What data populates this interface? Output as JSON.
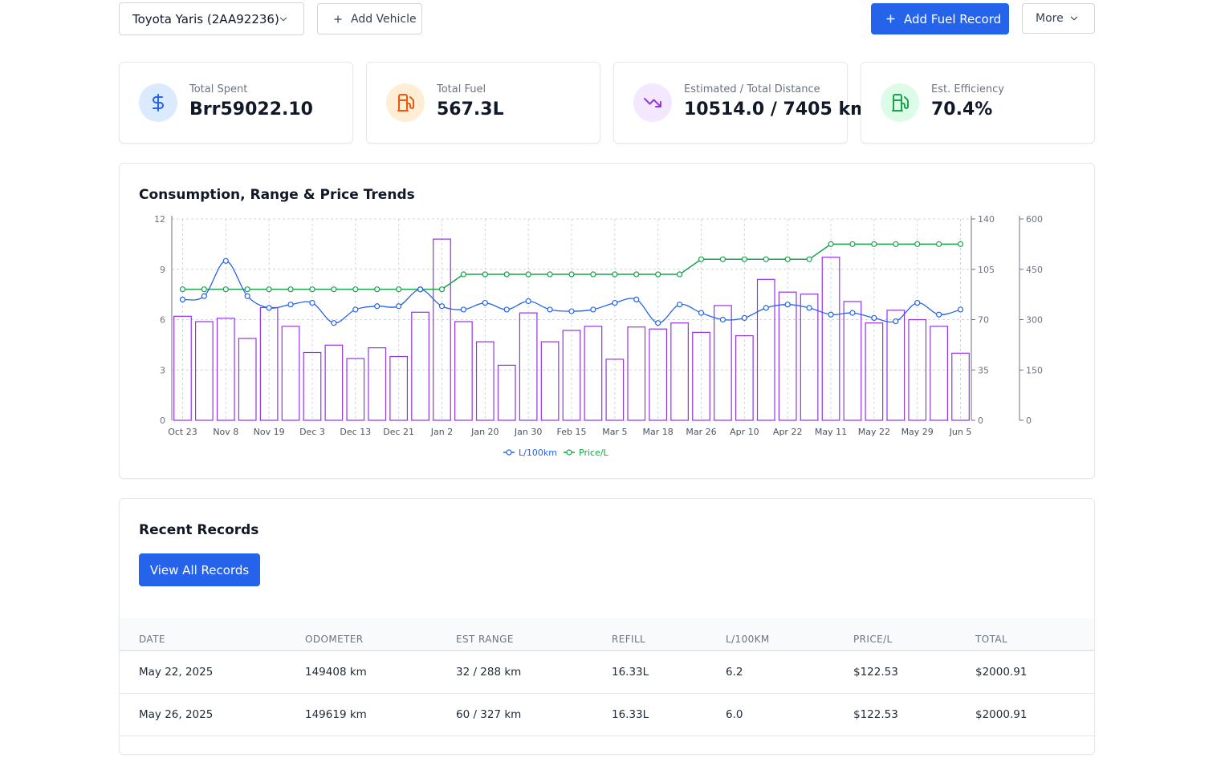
{
  "toolbar": {
    "vehicle_select": "Toyota Yaris (2AA92236)",
    "add_vehicle": "Add Vehicle",
    "add_fuel_record": "Add Fuel Record",
    "more": "More"
  },
  "stats": [
    {
      "label": "Total Spent",
      "value": "Brr59022.10",
      "icon": "dollar-icon",
      "color": "#2563eb"
    },
    {
      "label": "Total Fuel",
      "value": "567.3L",
      "icon": "fuel-pump-icon",
      "color": "#ea580c"
    },
    {
      "label": "Estimated / Total Distance",
      "value": "10514.0 / 7405 km",
      "icon": "trending-down-icon",
      "color": "#9333ea"
    },
    {
      "label": "Est. Efficiency",
      "value": "70.4%",
      "icon": "fuel-pump-icon",
      "color": "#16a34a"
    }
  ],
  "chart": {
    "title": "Consumption, Range & Price Trends",
    "legend": [
      "L/100km",
      "Price/L"
    ],
    "colors": {
      "consumption": "#2563eb",
      "price": "#16a34a",
      "range": "#9333ea"
    }
  },
  "chart_data": {
    "type": "bar",
    "categories": [
      "Oct 23",
      "",
      "Nov 8",
      "",
      "Nov 19",
      "",
      "Dec 3",
      "",
      "Dec 13",
      "",
      "Dec 21",
      "",
      "Jan 2",
      "",
      "Jan 20",
      "",
      "Jan 30",
      "",
      "Feb 15",
      "",
      "Mar 5",
      "",
      "Mar 18",
      "",
      "Mar 26",
      "",
      "Apr 10",
      "",
      "Apr 22",
      "",
      "May 11",
      "",
      "May 22",
      "",
      "May 29",
      "",
      "Jun 5"
    ],
    "x_tick_labels": [
      "Oct 23",
      "Nov 8",
      "Nov 19",
      "Dec 3",
      "Dec 13",
      "Dec 21",
      "Jan 2",
      "Jan 20",
      "Jan 30",
      "Feb 15",
      "Mar 5",
      "Mar 18",
      "Mar 26",
      "Apr 10",
      "Apr 22",
      "May 11",
      "May 22",
      "May 29",
      "Jun 5"
    ],
    "y_left": {
      "ticks": [
        0,
        3,
        6,
        9,
        12
      ],
      "ylim": [
        0,
        12
      ]
    },
    "y_right1": {
      "ticks": [
        0,
        35,
        70,
        105,
        140
      ],
      "ylim": [
        0,
        140
      ]
    },
    "y_right2": {
      "ticks": [
        0,
        150,
        300,
        450,
        600
      ],
      "ylim": [
        0,
        600
      ]
    },
    "legend_position": "bottom-center",
    "grid": true,
    "series": [
      {
        "name": "L/100km",
        "type": "line",
        "axis": "left",
        "values": [
          7.2,
          7.4,
          9.5,
          7.4,
          6.7,
          6.9,
          7.0,
          5.8,
          6.6,
          6.8,
          6.8,
          7.8,
          6.8,
          6.6,
          7.0,
          6.6,
          7.1,
          6.6,
          6.5,
          6.6,
          7.0,
          7.2,
          5.8,
          6.9,
          6.4,
          6.0,
          6.1,
          6.7,
          6.9,
          6.7,
          6.3,
          6.4,
          6.1,
          5.9,
          7.0,
          6.3,
          6.6
        ]
      },
      {
        "name": "Price/L",
        "type": "line",
        "axis": "right1",
        "values": [
          91.1,
          91.1,
          91.1,
          91.1,
          91.1,
          91.1,
          91.1,
          91.1,
          91.1,
          91.1,
          91.1,
          91.1,
          91.1,
          101.5,
          101.5,
          101.5,
          101.5,
          101.5,
          101.5,
          101.5,
          101.5,
          101.5,
          101.5,
          101.5,
          112.0,
          112.0,
          112.0,
          112.0,
          112.0,
          112.0,
          122.5,
          122.5,
          122.5,
          122.5,
          122.5,
          122.5,
          122.5
        ]
      },
      {
        "type": "bar",
        "axis": "right2",
        "values": [
          310,
          294,
          304,
          244,
          336,
          280,
          202,
          224,
          184,
          216,
          190,
          322,
          540,
          294,
          234,
          164,
          320,
          234,
          268,
          280,
          182,
          278,
          272,
          290,
          262,
          342,
          252,
          420,
          382,
          376,
          486,
          354,
          290,
          328,
          300,
          280,
          200
        ]
      }
    ]
  },
  "records": {
    "title": "Recent Records",
    "view_all": "View All Records",
    "columns": [
      "DATE",
      "ODOMETER",
      "EST RANGE",
      "REFILL",
      "L/100KM",
      "PRICE/L",
      "TOTAL"
    ],
    "rows": [
      [
        "May 22, 2025",
        "149408 km",
        "32 / 288 km",
        "16.33L",
        "6.2",
        "$122.53",
        "$2000.91"
      ],
      [
        "May 26, 2025",
        "149619 km",
        "60 / 327 km",
        "16.33L",
        "6.0",
        "$122.53",
        "$2000.91"
      ]
    ]
  }
}
